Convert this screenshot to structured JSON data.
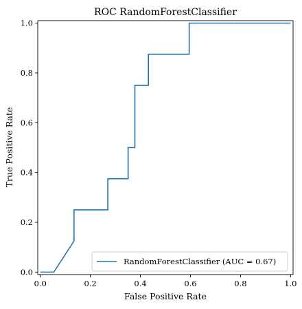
{
  "chart_data": {
    "type": "line",
    "title": "ROC RandomForestClassifier",
    "xlabel": "False Positive Rate",
    "ylabel": "True Positive Rate",
    "xlim": [
      -0.01,
      1.01
    ],
    "ylim": [
      -0.01,
      1.01
    ],
    "xticks": [
      "0.0",
      "0.2",
      "0.4",
      "0.6",
      "0.8",
      "1.0"
    ],
    "yticks": [
      "0.0",
      "0.2",
      "0.4",
      "0.6",
      "0.8",
      "1.0"
    ],
    "grid": false,
    "legend_position": "bottom-right",
    "series": [
      {
        "name": "RandomForestClassifier (AUC = 0.67)",
        "color": "#1f77b4",
        "x": [
          0.0,
          0.054,
          0.135,
          0.135,
          0.27,
          0.27,
          0.351,
          0.351,
          0.378,
          0.378,
          0.432,
          0.432,
          0.595,
          0.595,
          1.0
        ],
        "y": [
          0.0,
          0.0,
          0.125,
          0.25,
          0.25,
          0.375,
          0.375,
          0.5,
          0.5,
          0.75,
          0.75,
          0.875,
          0.875,
          1.0,
          1.0
        ]
      }
    ]
  }
}
